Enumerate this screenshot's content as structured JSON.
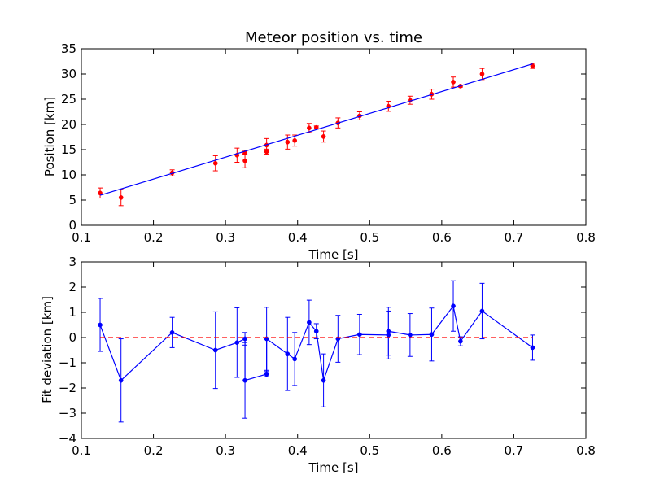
{
  "chart_data": [
    {
      "type": "scatter",
      "title": "Meteor position vs. time",
      "xlabel": "Time [s]",
      "ylabel": "Position [km]",
      "xlim": [
        0.1,
        0.8
      ],
      "ylim": [
        0,
        35
      ],
      "xticks": [
        "0.1",
        "0.2",
        "0.3",
        "0.4",
        "0.5",
        "0.6",
        "0.7",
        "0.8"
      ],
      "yticks": [
        "0",
        "5",
        "10",
        "15",
        "20",
        "25",
        "30",
        "35"
      ],
      "grid": false,
      "colors": {
        "points": "#ff0000",
        "fit": "#0000ff"
      },
      "series": [
        {
          "style": "points-with-errorbars",
          "x": [
            0.126,
            0.155,
            0.226,
            0.286,
            0.316,
            0.327,
            0.327,
            0.357,
            0.357,
            0.386,
            0.396,
            0.416,
            0.426,
            0.436,
            0.456,
            0.486,
            0.526,
            0.556,
            0.586,
            0.616,
            0.626,
            0.656,
            0.726
          ],
          "y": [
            6.4,
            5.5,
            10.4,
            12.3,
            13.9,
            12.8,
            14.4,
            14.6,
            15.9,
            16.5,
            16.8,
            19.3,
            19.4,
            17.6,
            20.3,
            21.7,
            23.6,
            24.8,
            26.0,
            28.4,
            27.6,
            30.0,
            31.6
          ],
          "yerr": [
            1.0,
            1.6,
            0.6,
            1.5,
            1.4,
            1.4,
            0.3,
            0.5,
            1.3,
            1.4,
            1.1,
            0.9,
            0.3,
            1.1,
            1.0,
            0.8,
            1.0,
            0.8,
            1.0,
            1.0,
            0.2,
            1.1,
            0.5
          ]
        },
        {
          "style": "line",
          "x": [
            0.126,
            0.726
          ],
          "y": [
            5.95,
            32.0
          ]
        }
      ]
    },
    {
      "type": "line",
      "title": "",
      "xlabel": "Time [s]",
      "ylabel": "Fit deviation [km]",
      "xlim": [
        0.1,
        0.8
      ],
      "ylim": [
        -4,
        3
      ],
      "xticks": [
        "0.1",
        "0.2",
        "0.3",
        "0.4",
        "0.5",
        "0.6",
        "0.7",
        "0.8"
      ],
      "yticks": [
        "−4",
        "−3",
        "−2",
        "−1",
        "0",
        "1",
        "2",
        "3"
      ],
      "grid": false,
      "colors": {
        "deviation": "#0000ff",
        "zero_line": "#ff0000"
      },
      "series": [
        {
          "style": "line-points-with-errorbars",
          "x": [
            0.126,
            0.155,
            0.226,
            0.286,
            0.316,
            0.327,
            0.327,
            0.357,
            0.357,
            0.386,
            0.396,
            0.416,
            0.426,
            0.436,
            0.456,
            0.486,
            0.526,
            0.526,
            0.556,
            0.586,
            0.616,
            0.626,
            0.656,
            0.726
          ],
          "y": [
            0.5,
            -1.7,
            0.2,
            -0.5,
            -0.2,
            -0.05,
            -1.7,
            -1.45,
            -0.05,
            -0.65,
            -0.85,
            0.6,
            0.25,
            -1.7,
            -0.05,
            0.12,
            0.1,
            0.25,
            0.1,
            0.12,
            1.25,
            -0.15,
            1.05,
            -0.4
          ],
          "yerr": [
            1.05,
            1.65,
            0.6,
            1.52,
            1.38,
            0.25,
            1.5,
            0.1,
            1.25,
            1.45,
            1.05,
            0.88,
            0.3,
            1.05,
            0.93,
            0.8,
            0.95,
            0.95,
            0.85,
            1.05,
            1.0,
            0.18,
            1.1,
            0.5
          ]
        },
        {
          "style": "dashed-line",
          "x": [
            0.126,
            0.726
          ],
          "y": [
            0,
            0
          ]
        }
      ]
    }
  ]
}
